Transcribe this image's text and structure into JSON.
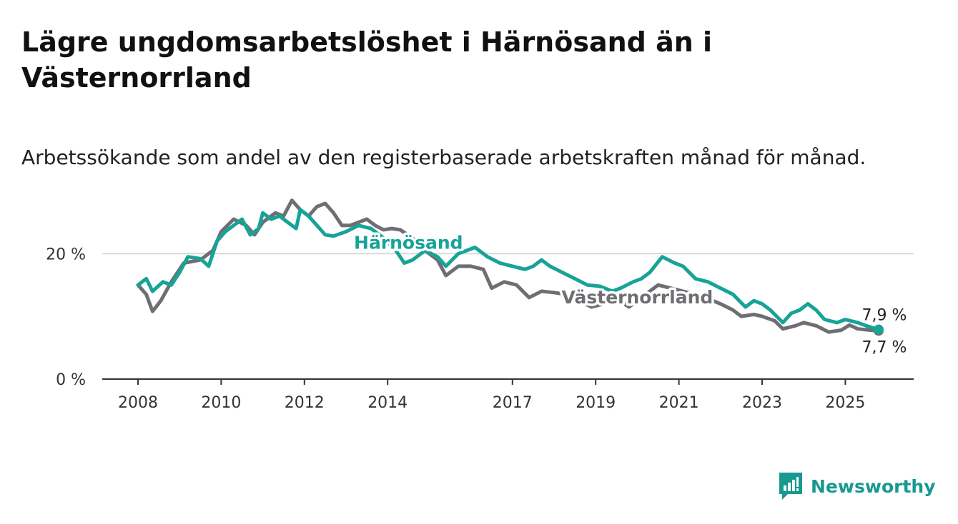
{
  "title": "Lägre ungdomsarbetslöshet i Härnösand än i Västernorrland",
  "subtitle": "Arbetssökande som andel av den registerbaserade arbetskraften månad för månad.",
  "brand": {
    "name": "Newsworthy",
    "icon": "newsworthy-logo-icon"
  },
  "colors": {
    "harnosand": "#17a398",
    "vasternorrland": "#6f6e73",
    "grid": "#d9d9d9",
    "axis": "#333333"
  },
  "chart_data": {
    "type": "line",
    "title": "Lägre ungdomsarbetslöshet i Härnösand än i Västernorrland",
    "ylim": [
      0,
      28
    ],
    "xlim": [
      2008,
      2026
    ],
    "y_ticks": [
      {
        "value": 0,
        "label": "0 %"
      },
      {
        "value": 20,
        "label": "20 %"
      }
    ],
    "x_ticks": [
      {
        "value": 2008,
        "label": "2008"
      },
      {
        "value": 2010,
        "label": "2010"
      },
      {
        "value": 2012,
        "label": "2012"
      },
      {
        "value": 2014,
        "label": "2014"
      },
      {
        "value": 2017,
        "label": "2017"
      },
      {
        "value": 2019,
        "label": "2019"
      },
      {
        "value": 2021,
        "label": "2021"
      },
      {
        "value": 2023,
        "label": "2023"
      },
      {
        "value": 2025,
        "label": "2025"
      }
    ],
    "series": [
      {
        "name": "Västernorrland",
        "key": "vasternorrland",
        "end_label": "7,7 %",
        "points": [
          [
            2008.0,
            15.0
          ],
          [
            2008.2,
            13.5
          ],
          [
            2008.35,
            10.8
          ],
          [
            2008.55,
            12.5
          ],
          [
            2008.8,
            15.5
          ],
          [
            2009.1,
            18.5
          ],
          [
            2009.5,
            19.0
          ],
          [
            2009.8,
            20.5
          ],
          [
            2010.0,
            23.5
          ],
          [
            2010.3,
            25.5
          ],
          [
            2010.6,
            24.5
          ],
          [
            2010.8,
            23.0
          ],
          [
            2011.0,
            25.0
          ],
          [
            2011.3,
            26.5
          ],
          [
            2011.5,
            26.0
          ],
          [
            2011.7,
            28.5
          ],
          [
            2011.9,
            27.0
          ],
          [
            2012.1,
            26.0
          ],
          [
            2012.3,
            27.5
          ],
          [
            2012.5,
            28.0
          ],
          [
            2012.7,
            26.5
          ],
          [
            2012.9,
            24.5
          ],
          [
            2013.1,
            24.5
          ],
          [
            2013.3,
            25.0
          ],
          [
            2013.5,
            25.5
          ],
          [
            2013.7,
            24.5
          ],
          [
            2013.9,
            23.8
          ],
          [
            2014.1,
            24.0
          ],
          [
            2014.3,
            23.8
          ],
          [
            2014.6,
            22.5
          ],
          [
            2014.9,
            20.5
          ],
          [
            2015.2,
            19.0
          ],
          [
            2015.4,
            16.5
          ],
          [
            2015.7,
            18.0
          ],
          [
            2016.0,
            18.0
          ],
          [
            2016.3,
            17.5
          ],
          [
            2016.5,
            14.5
          ],
          [
            2016.8,
            15.5
          ],
          [
            2017.1,
            15.0
          ],
          [
            2017.4,
            13.0
          ],
          [
            2017.7,
            14.0
          ],
          [
            2018.0,
            13.8
          ],
          [
            2018.3,
            13.5
          ],
          [
            2018.6,
            12.5
          ],
          [
            2018.9,
            11.5
          ],
          [
            2019.2,
            12.0
          ],
          [
            2019.5,
            12.8
          ],
          [
            2019.8,
            11.5
          ],
          [
            2020.2,
            13.5
          ],
          [
            2020.5,
            15.0
          ],
          [
            2020.8,
            14.5
          ],
          [
            2021.1,
            14.0
          ],
          [
            2021.4,
            13.5
          ],
          [
            2021.7,
            12.8
          ],
          [
            2022.0,
            12.0
          ],
          [
            2022.3,
            11.0
          ],
          [
            2022.5,
            10.0
          ],
          [
            2022.8,
            10.3
          ],
          [
            2023.0,
            10.0
          ],
          [
            2023.3,
            9.3
          ],
          [
            2023.5,
            8.0
          ],
          [
            2023.8,
            8.5
          ],
          [
            2024.0,
            9.0
          ],
          [
            2024.3,
            8.5
          ],
          [
            2024.6,
            7.5
          ],
          [
            2024.9,
            7.8
          ],
          [
            2025.1,
            8.6
          ],
          [
            2025.3,
            8.0
          ],
          [
            2025.6,
            7.8
          ],
          [
            2025.8,
            7.7
          ]
        ]
      },
      {
        "name": "Härnösand",
        "key": "harnosand",
        "end_label": "7,9 %",
        "points": [
          [
            2008.0,
            15.0
          ],
          [
            2008.2,
            16.0
          ],
          [
            2008.35,
            14.0
          ],
          [
            2008.6,
            15.5
          ],
          [
            2008.8,
            15.0
          ],
          [
            2009.0,
            17.0
          ],
          [
            2009.2,
            19.5
          ],
          [
            2009.5,
            19.2
          ],
          [
            2009.7,
            18.0
          ],
          [
            2009.9,
            22.0
          ],
          [
            2010.1,
            23.5
          ],
          [
            2010.3,
            24.5
          ],
          [
            2010.5,
            25.5
          ],
          [
            2010.7,
            23.0
          ],
          [
            2010.9,
            24.0
          ],
          [
            2011.0,
            26.5
          ],
          [
            2011.2,
            25.5
          ],
          [
            2011.4,
            26.0
          ],
          [
            2011.6,
            25.0
          ],
          [
            2011.8,
            24.0
          ],
          [
            2011.9,
            27.0
          ],
          [
            2012.1,
            26.0
          ],
          [
            2012.3,
            24.5
          ],
          [
            2012.5,
            23.0
          ],
          [
            2012.7,
            22.8
          ],
          [
            2013.0,
            23.5
          ],
          [
            2013.3,
            24.5
          ],
          [
            2013.6,
            24.0
          ],
          [
            2013.9,
            22.5
          ],
          [
            2014.2,
            20.5
          ],
          [
            2014.4,
            18.5
          ],
          [
            2014.6,
            19.0
          ],
          [
            2014.9,
            20.5
          ],
          [
            2015.2,
            19.5
          ],
          [
            2015.4,
            18.0
          ],
          [
            2015.7,
            20.0
          ],
          [
            2015.9,
            20.5
          ],
          [
            2016.1,
            21.0
          ],
          [
            2016.4,
            19.5
          ],
          [
            2016.7,
            18.5
          ],
          [
            2017.0,
            18.0
          ],
          [
            2017.3,
            17.5
          ],
          [
            2017.5,
            18.0
          ],
          [
            2017.7,
            19.0
          ],
          [
            2017.9,
            18.0
          ],
          [
            2018.2,
            17.0
          ],
          [
            2018.5,
            16.0
          ],
          [
            2018.8,
            15.0
          ],
          [
            2019.1,
            14.8
          ],
          [
            2019.4,
            14.0
          ],
          [
            2019.6,
            14.5
          ],
          [
            2019.9,
            15.5
          ],
          [
            2020.1,
            16.0
          ],
          [
            2020.3,
            17.0
          ],
          [
            2020.6,
            19.5
          ],
          [
            2020.9,
            18.5
          ],
          [
            2021.1,
            18.0
          ],
          [
            2021.4,
            16.0
          ],
          [
            2021.7,
            15.5
          ],
          [
            2022.0,
            14.5
          ],
          [
            2022.3,
            13.5
          ],
          [
            2022.6,
            11.5
          ],
          [
            2022.8,
            12.5
          ],
          [
            2023.0,
            12.0
          ],
          [
            2023.2,
            11.0
          ],
          [
            2023.5,
            9.0
          ],
          [
            2023.7,
            10.5
          ],
          [
            2023.9,
            11.0
          ],
          [
            2024.1,
            12.0
          ],
          [
            2024.3,
            11.0
          ],
          [
            2024.5,
            9.5
          ],
          [
            2024.8,
            9.0
          ],
          [
            2025.0,
            9.5
          ],
          [
            2025.3,
            9.0
          ],
          [
            2025.5,
            8.5
          ],
          [
            2025.8,
            7.9
          ]
        ]
      }
    ],
    "annotations": [
      {
        "text": "Härnösand",
        "series": "harnosand",
        "x": 2014.5,
        "y": 21.7
      },
      {
        "text": "Västernorrland",
        "series": "vasternorrland",
        "x": 2020.0,
        "y": 13.0
      }
    ]
  }
}
